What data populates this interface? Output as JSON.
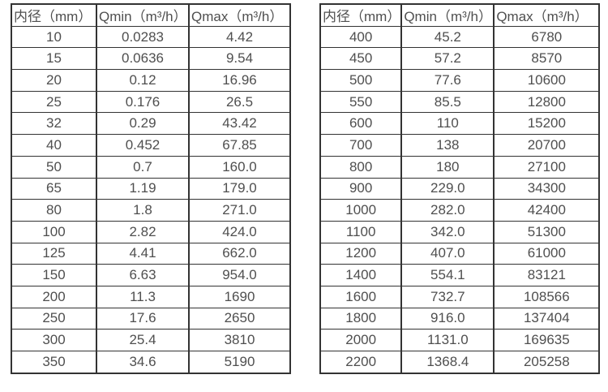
{
  "page": {
    "background": "#ffffff",
    "text_color": "#4f4f4f",
    "border_color": "#333333"
  },
  "chart_data": [
    {
      "type": "table",
      "headers": [
        "内径（mm）",
        "Qmin（m³/h）",
        "Qmax（m³/h）"
      ],
      "rows": [
        [
          "10",
          "0.0283",
          "4.42"
        ],
        [
          "15",
          "0.0636",
          "9.54"
        ],
        [
          "20",
          "0.12",
          "16.96"
        ],
        [
          "25",
          "0.176",
          "26.5"
        ],
        [
          "32",
          "0.29",
          "43.42"
        ],
        [
          "40",
          "0.452",
          "67.85"
        ],
        [
          "50",
          "0.7",
          "160.0"
        ],
        [
          "65",
          "1.19",
          "179.0"
        ],
        [
          "80",
          "1.8",
          "271.0"
        ],
        [
          "100",
          "2.82",
          "424.0"
        ],
        [
          "125",
          "4.41",
          "662.0"
        ],
        [
          "150",
          "6.63",
          "954.0"
        ],
        [
          "200",
          "11.3",
          "1690"
        ],
        [
          "250",
          "17.6",
          "2650"
        ],
        [
          "300",
          "25.4",
          "3810"
        ],
        [
          "350",
          "34.6",
          "5190"
        ]
      ]
    },
    {
      "type": "table",
      "headers": [
        "内径（mm）",
        "Qmin（m³/h）",
        "Qmax（m³/h）"
      ],
      "rows": [
        [
          "400",
          "45.2",
          "6780"
        ],
        [
          "450",
          "57.2",
          "8570"
        ],
        [
          "500",
          "77.6",
          "10600"
        ],
        [
          "550",
          "85.5",
          "12800"
        ],
        [
          "600",
          "110",
          "15200"
        ],
        [
          "700",
          "138",
          "20700"
        ],
        [
          "800",
          "180",
          "27100"
        ],
        [
          "900",
          "229.0",
          "34300"
        ],
        [
          "1000",
          "282.0",
          "42400"
        ],
        [
          "1100",
          "342.0",
          "51300"
        ],
        [
          "1200",
          "407.0",
          "61000"
        ],
        [
          "1400",
          "554.1",
          "83121"
        ],
        [
          "1600",
          "732.7",
          "108566"
        ],
        [
          "1800",
          "916.0",
          "137404"
        ],
        [
          "2000",
          "1131.0",
          "169635"
        ],
        [
          "2200",
          "1368.4",
          "205258"
        ]
      ]
    }
  ]
}
